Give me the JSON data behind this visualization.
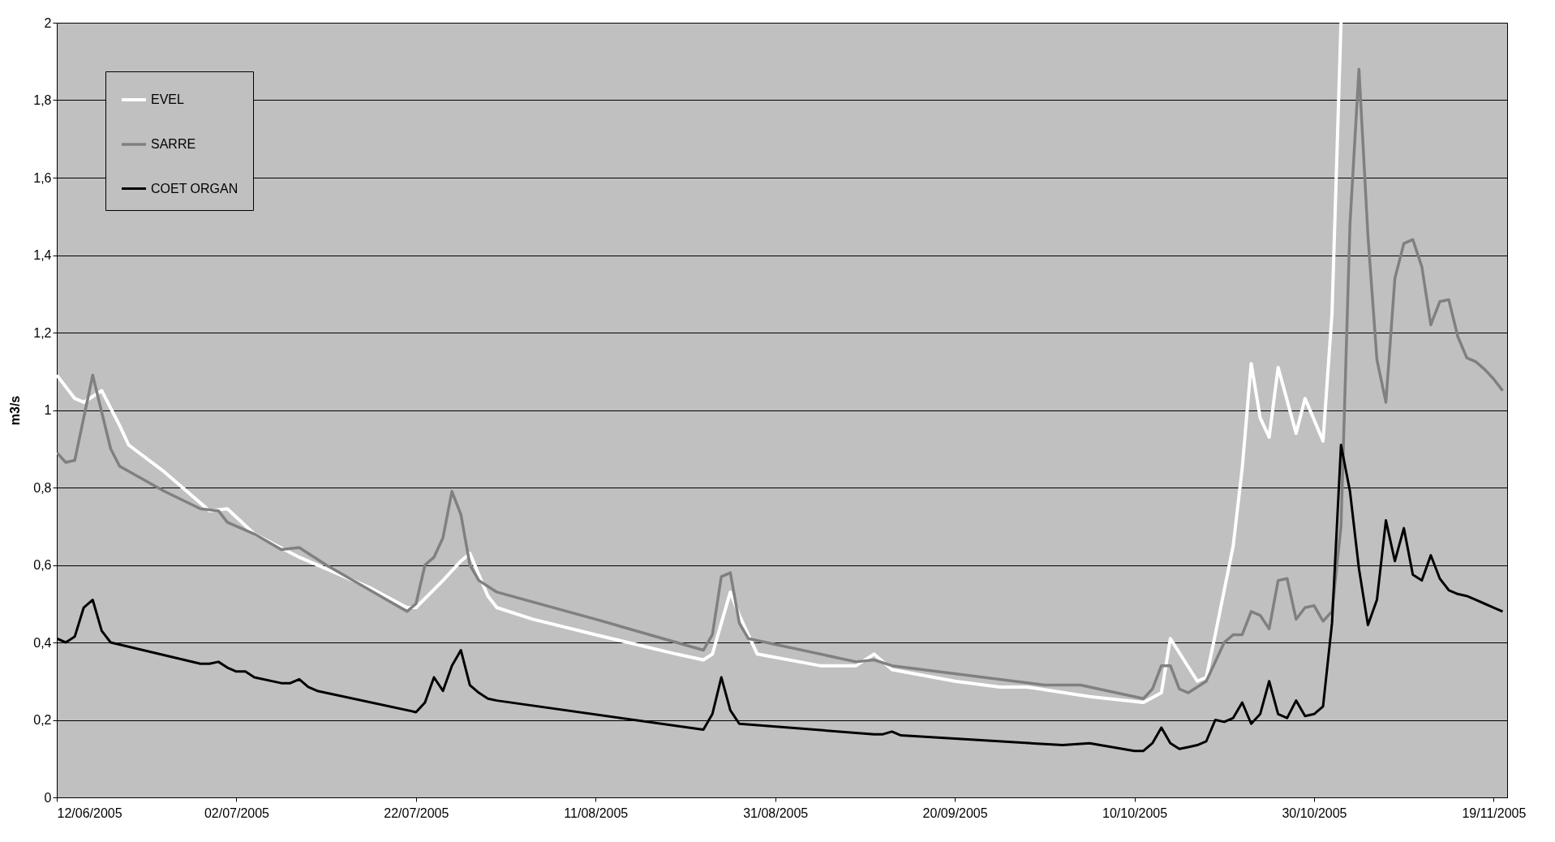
{
  "chart_data": {
    "type": "line",
    "ylabel": "m3/s",
    "xlim": [
      "2005-06-12",
      "2005-11-20T12:00"
    ],
    "xticks": [
      {
        "value": "2005-06-12",
        "label": "12/06/2005"
      },
      {
        "value": "2005-07-02",
        "label": "02/07/2005"
      },
      {
        "value": "2005-07-22",
        "label": "22/07/2005"
      },
      {
        "value": "2005-08-11",
        "label": "11/08/2005"
      },
      {
        "value": "2005-08-31",
        "label": "31/08/2005"
      },
      {
        "value": "2005-09-20",
        "label": "20/09/2005"
      },
      {
        "value": "2005-10-10",
        "label": "10/10/2005"
      },
      {
        "value": "2005-10-30",
        "label": "30/10/2005"
      },
      {
        "value": "2005-11-19",
        "label": "19/11/2005"
      }
    ],
    "ylim": [
      0,
      2
    ],
    "yticks": [
      0,
      {
        "value": 0.2,
        "label": "0,2"
      },
      {
        "value": 0.4,
        "label": "0,4"
      },
      {
        "value": 0.6,
        "label": "0,6"
      },
      {
        "value": 0.8,
        "label": "0,8"
      },
      1,
      {
        "value": 1.2,
        "label": "1,2"
      },
      {
        "value": 1.4,
        "label": "1,4"
      },
      {
        "value": 1.6,
        "label": "1,6"
      },
      {
        "value": 1.8,
        "label": "1,8"
      },
      2
    ],
    "grid": "y",
    "legend": "top left",
    "marker": "none",
    "line_style": "solid",
    "series": [
      {
        "name": "EVEL",
        "color": "#ffffff",
        "x": [
          "2005-06-12",
          "2005-06-14",
          "2005-06-15",
          "2005-06-17",
          "2005-06-19",
          "2005-06-20",
          "2005-06-24",
          "2005-06-29",
          "2005-07-01",
          "2005-07-04",
          "2005-07-09",
          "2005-07-17",
          "2005-07-21",
          "2005-07-22",
          "2005-07-25",
          "2005-07-27",
          "2005-07-28",
          "2005-07-30",
          "2005-07-31",
          "2005-08-04",
          "2005-08-11",
          "2005-08-20",
          "2005-08-23",
          "2005-08-24",
          "2005-08-26",
          "2005-08-27",
          "2005-08-29",
          "2005-09-05",
          "2005-09-09",
          "2005-09-11",
          "2005-09-13",
          "2005-09-20",
          "2005-09-25",
          "2005-09-28",
          "2005-10-05",
          "2005-10-11",
          "2005-10-13",
          "2005-10-14",
          "2005-10-17",
          "2005-10-18",
          "2005-10-19",
          "2005-10-21",
          "2005-10-22",
          "2005-10-23",
          "2005-10-24",
          "2005-10-25",
          "2005-10-26",
          "2005-10-28",
          "2005-10-29",
          "2005-10-31",
          "2005-11-01",
          "2005-11-02"
        ],
        "values": [
          1.09,
          1.03,
          1.02,
          1.05,
          0.96,
          0.91,
          0.84,
          0.74,
          0.745,
          0.68,
          0.62,
          0.54,
          0.49,
          0.49,
          0.56,
          0.61,
          0.63,
          0.52,
          0.49,
          0.46,
          0.42,
          0.37,
          0.355,
          0.37,
          0.53,
          0.47,
          0.37,
          0.34,
          0.34,
          0.37,
          0.33,
          0.3,
          0.285,
          0.285,
          0.26,
          0.245,
          0.27,
          0.41,
          0.3,
          0.31,
          0.42,
          0.65,
          0.85,
          1.12,
          0.98,
          0.93,
          1.11,
          0.94,
          1.03,
          0.92,
          1.25,
          2.0
        ]
      },
      {
        "name": "SARRE",
        "color": "#808080",
        "x": [
          "2005-06-12",
          "2005-06-13",
          "2005-06-14",
          "2005-06-16",
          "2005-06-18",
          "2005-06-19",
          "2005-06-24",
          "2005-06-28",
          "2005-06-30",
          "2005-07-01",
          "2005-07-04",
          "2005-07-07",
          "2005-07-09",
          "2005-07-10",
          "2005-07-12",
          "2005-07-21",
          "2005-07-22",
          "2005-07-23",
          "2005-07-24",
          "2005-07-25",
          "2005-07-26",
          "2005-07-27",
          "2005-07-28",
          "2005-07-29",
          "2005-07-31",
          "2005-08-11",
          "2005-08-23",
          "2005-08-24",
          "2005-08-25",
          "2005-08-26",
          "2005-08-27",
          "2005-08-28",
          "2005-09-09",
          "2005-09-11",
          "2005-09-13",
          "2005-09-30",
          "2005-10-04",
          "2005-10-11",
          "2005-10-12",
          "2005-10-13",
          "2005-10-14",
          "2005-10-15",
          "2005-10-16",
          "2005-10-18",
          "2005-10-20",
          "2005-10-21",
          "2005-10-22",
          "2005-10-23",
          "2005-10-24",
          "2005-10-25",
          "2005-10-26",
          "2005-10-27",
          "2005-10-28",
          "2005-10-29",
          "2005-10-30",
          "2005-10-31",
          "2005-11-01",
          "2005-11-02",
          "2005-11-03",
          "2005-11-04",
          "2005-11-05",
          "2005-11-06",
          "2005-11-07",
          "2005-11-08",
          "2005-11-09",
          "2005-11-10",
          "2005-11-11",
          "2005-11-12",
          "2005-11-13",
          "2005-11-14",
          "2005-11-15",
          "2005-11-16",
          "2005-11-17",
          "2005-11-18",
          "2005-11-19",
          "2005-11-20"
        ],
        "values": [
          0.89,
          0.865,
          0.87,
          1.09,
          0.9,
          0.855,
          0.79,
          0.745,
          0.74,
          0.71,
          0.68,
          0.64,
          0.645,
          0.63,
          0.6,
          0.48,
          0.5,
          0.6,
          0.62,
          0.67,
          0.79,
          0.73,
          0.6,
          0.56,
          0.53,
          0.46,
          0.38,
          0.42,
          0.57,
          0.58,
          0.45,
          0.41,
          0.35,
          0.355,
          0.34,
          0.29,
          0.29,
          0.255,
          0.28,
          0.34,
          0.34,
          0.28,
          0.27,
          0.3,
          0.4,
          0.42,
          0.42,
          0.48,
          0.47,
          0.435,
          0.56,
          0.565,
          0.46,
          0.49,
          0.495,
          0.455,
          0.48,
          0.7,
          1.48,
          1.88,
          1.45,
          1.13,
          1.02,
          1.34,
          1.43,
          1.44,
          1.37,
          1.22,
          1.28,
          1.285,
          1.19,
          1.135,
          1.125,
          1.105,
          1.08,
          1.05
        ]
      },
      {
        "name": "COET ORGAN",
        "color": "#000000",
        "x": [
          "2005-06-12",
          "2005-06-13",
          "2005-06-14",
          "2005-06-15",
          "2005-06-16",
          "2005-06-17",
          "2005-06-18",
          "2005-06-28",
          "2005-06-29",
          "2005-06-30",
          "2005-07-01",
          "2005-07-02",
          "2005-07-03",
          "2005-07-04",
          "2005-07-07",
          "2005-07-08",
          "2005-07-09",
          "2005-07-10",
          "2005-07-11",
          "2005-07-22",
          "2005-07-23",
          "2005-07-24",
          "2005-07-25",
          "2005-07-26",
          "2005-07-27",
          "2005-07-28",
          "2005-07-29",
          "2005-07-30",
          "2005-07-31",
          "2005-08-23",
          "2005-08-24",
          "2005-08-25",
          "2005-08-26",
          "2005-08-27",
          "2005-09-11",
          "2005-09-12",
          "2005-09-13",
          "2005-09-14",
          "2005-10-02",
          "2005-10-05",
          "2005-10-10",
          "2005-10-11",
          "2005-10-12",
          "2005-10-13",
          "2005-10-14",
          "2005-10-15",
          "2005-10-16",
          "2005-10-17",
          "2005-10-18",
          "2005-10-19",
          "2005-10-20",
          "2005-10-21",
          "2005-10-22",
          "2005-10-23",
          "2005-10-24",
          "2005-10-25",
          "2005-10-26",
          "2005-10-27",
          "2005-10-28",
          "2005-10-29",
          "2005-10-30",
          "2005-10-31",
          "2005-11-01",
          "2005-11-02",
          "2005-11-03",
          "2005-11-04",
          "2005-11-05",
          "2005-11-06",
          "2005-11-07",
          "2005-11-08",
          "2005-11-09",
          "2005-11-10",
          "2005-11-11",
          "2005-11-12",
          "2005-11-13",
          "2005-11-14",
          "2005-11-15",
          "2005-11-16",
          "2005-11-17",
          "2005-11-18",
          "2005-11-19",
          "2005-11-20"
        ],
        "values": [
          0.41,
          0.4,
          0.415,
          0.49,
          0.51,
          0.43,
          0.4,
          0.345,
          0.345,
          0.35,
          0.335,
          0.325,
          0.325,
          0.31,
          0.295,
          0.295,
          0.305,
          0.285,
          0.275,
          0.22,
          0.245,
          0.31,
          0.275,
          0.34,
          0.38,
          0.29,
          0.27,
          0.255,
          0.25,
          0.175,
          0.215,
          0.31,
          0.225,
          0.19,
          0.163,
          0.163,
          0.17,
          0.16,
          0.135,
          0.14,
          0.12,
          0.12,
          0.14,
          0.18,
          0.14,
          0.125,
          0.13,
          0.135,
          0.145,
          0.2,
          0.195,
          0.205,
          0.245,
          0.19,
          0.215,
          0.3,
          0.215,
          0.205,
          0.25,
          0.21,
          0.215,
          0.235,
          0.45,
          0.91,
          0.79,
          0.59,
          0.445,
          0.51,
          0.715,
          0.61,
          0.695,
          0.575,
          0.56,
          0.625,
          0.565,
          0.535,
          0.525,
          0.52,
          0.51,
          0.5,
          0.49,
          0.48
        ]
      }
    ]
  }
}
